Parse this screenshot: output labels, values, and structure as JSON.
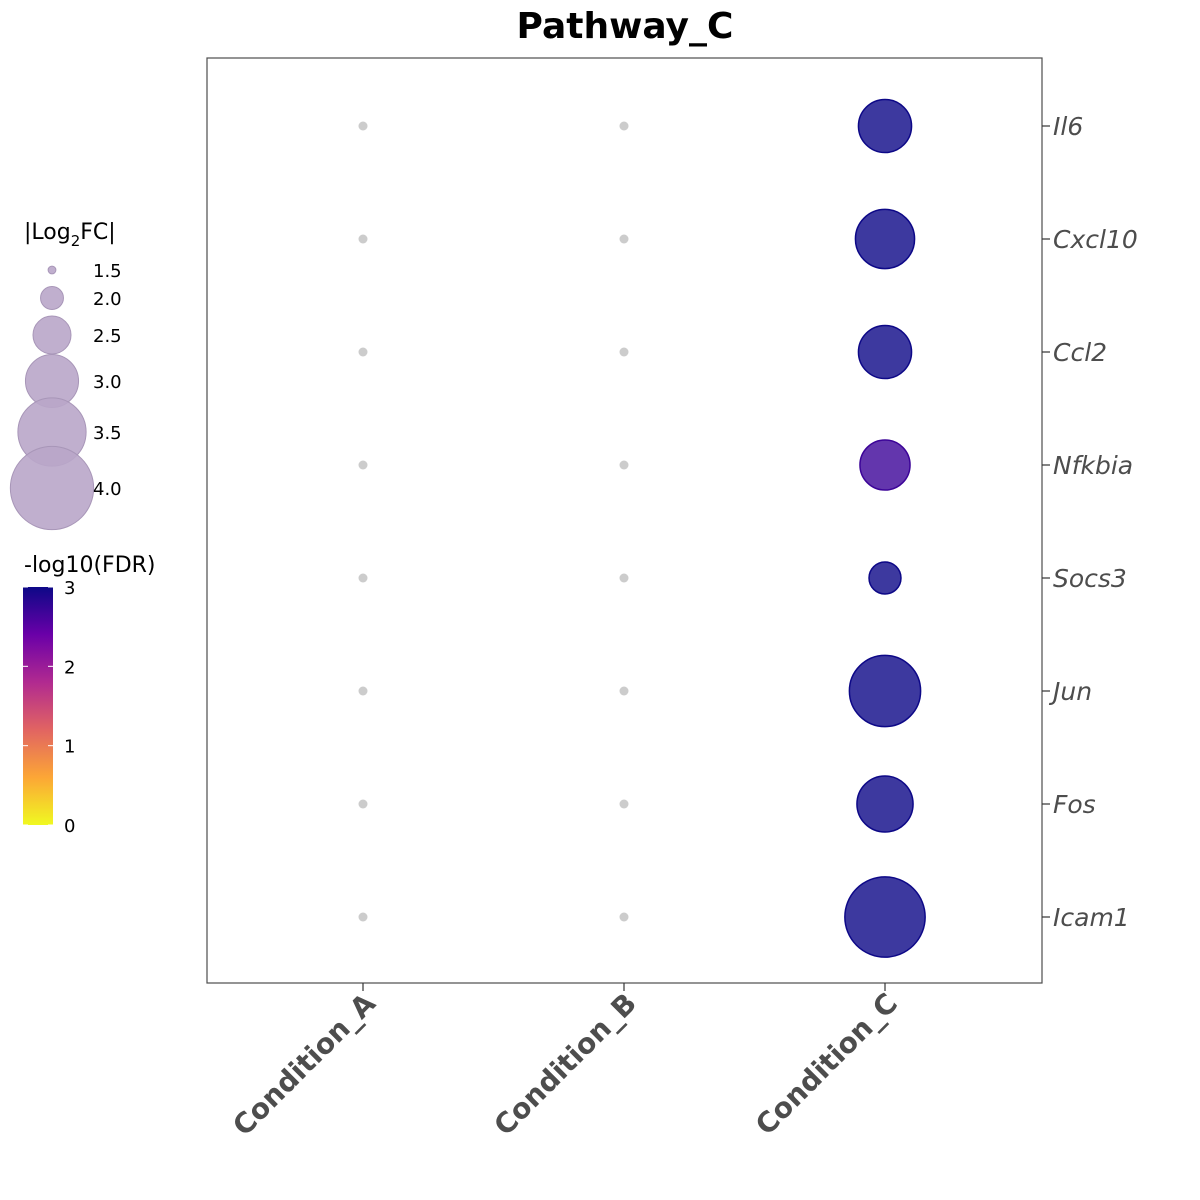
{
  "chart_data": {
    "type": "scatter",
    "title": "Pathway_C",
    "xlabel": "",
    "ylabel": "",
    "categories_x": [
      "Condition_A",
      "Condition_B",
      "Condition_C"
    ],
    "categories_y": [
      "Il6",
      "Cxcl10",
      "Ccl2",
      "Nfkbia",
      "Socs3",
      "Jun",
      "Fos",
      "Icam1"
    ],
    "size_legend": {
      "title_prefix": "|Log",
      "title_sub": "2",
      "title_suffix": "FC|",
      "breaks": [
        1.5,
        2.0,
        2.5,
        3.0,
        3.5,
        4.0
      ],
      "labels": [
        "1.5",
        "2.0",
        "2.5",
        "3.0",
        "3.5",
        "4.0"
      ],
      "color": "#b9a6c9"
    },
    "color_legend": {
      "title": "-log10(FDR)",
      "min": 0,
      "max": 3,
      "tick_labels": [
        "0",
        "1",
        "2",
        "3"
      ],
      "colors": [
        "#f0f921",
        "#fca636",
        "#e16462",
        "#b12a90",
        "#6a00a8",
        "#0d0887"
      ]
    },
    "nonsignificant_color": "#cccccc",
    "points": [
      {
        "gene": "Il6",
        "condition": "Condition_A",
        "log2fc_abs": null,
        "neg_log10_fdr": null
      },
      {
        "gene": "Il6",
        "condition": "Condition_B",
        "log2fc_abs": null,
        "neg_log10_fdr": null
      },
      {
        "gene": "Il6",
        "condition": "Condition_C",
        "log2fc_abs": 3.0,
        "neg_log10_fdr": 3.0
      },
      {
        "gene": "Cxcl10",
        "condition": "Condition_A",
        "log2fc_abs": null,
        "neg_log10_fdr": null
      },
      {
        "gene": "Cxcl10",
        "condition": "Condition_B",
        "log2fc_abs": null,
        "neg_log10_fdr": null
      },
      {
        "gene": "Cxcl10",
        "condition": "Condition_C",
        "log2fc_abs": 3.2,
        "neg_log10_fdr": 3.0
      },
      {
        "gene": "Ccl2",
        "condition": "Condition_A",
        "log2fc_abs": null,
        "neg_log10_fdr": null
      },
      {
        "gene": "Ccl2",
        "condition": "Condition_B",
        "log2fc_abs": null,
        "neg_log10_fdr": null
      },
      {
        "gene": "Ccl2",
        "condition": "Condition_C",
        "log2fc_abs": 3.0,
        "neg_log10_fdr": 3.0
      },
      {
        "gene": "Nfkbia",
        "condition": "Condition_A",
        "log2fc_abs": null,
        "neg_log10_fdr": null
      },
      {
        "gene": "Nfkbia",
        "condition": "Condition_B",
        "log2fc_abs": null,
        "neg_log10_fdr": null
      },
      {
        "gene": "Nfkbia",
        "condition": "Condition_C",
        "log2fc_abs": 2.9,
        "neg_log10_fdr": 2.7
      },
      {
        "gene": "Socs3",
        "condition": "Condition_A",
        "log2fc_abs": null,
        "neg_log10_fdr": null
      },
      {
        "gene": "Socs3",
        "condition": "Condition_B",
        "log2fc_abs": null,
        "neg_log10_fdr": null
      },
      {
        "gene": "Socs3",
        "condition": "Condition_C",
        "log2fc_abs": 2.3,
        "neg_log10_fdr": 3.0
      },
      {
        "gene": "Jun",
        "condition": "Condition_A",
        "log2fc_abs": null,
        "neg_log10_fdr": null
      },
      {
        "gene": "Jun",
        "condition": "Condition_B",
        "log2fc_abs": null,
        "neg_log10_fdr": null
      },
      {
        "gene": "Jun",
        "condition": "Condition_C",
        "log2fc_abs": 3.6,
        "neg_log10_fdr": 3.0
      },
      {
        "gene": "Fos",
        "condition": "Condition_A",
        "log2fc_abs": null,
        "neg_log10_fdr": null
      },
      {
        "gene": "Fos",
        "condition": "Condition_B",
        "log2fc_abs": null,
        "neg_log10_fdr": null
      },
      {
        "gene": "Fos",
        "condition": "Condition_C",
        "log2fc_abs": 3.1,
        "neg_log10_fdr": 3.0
      },
      {
        "gene": "Icam1",
        "condition": "Condition_A",
        "log2fc_abs": null,
        "neg_log10_fdr": null
      },
      {
        "gene": "Icam1",
        "condition": "Condition_B",
        "log2fc_abs": null,
        "neg_log10_fdr": null
      },
      {
        "gene": "Icam1",
        "condition": "Condition_C",
        "log2fc_abs": 3.9,
        "neg_log10_fdr": 3.0
      }
    ]
  }
}
